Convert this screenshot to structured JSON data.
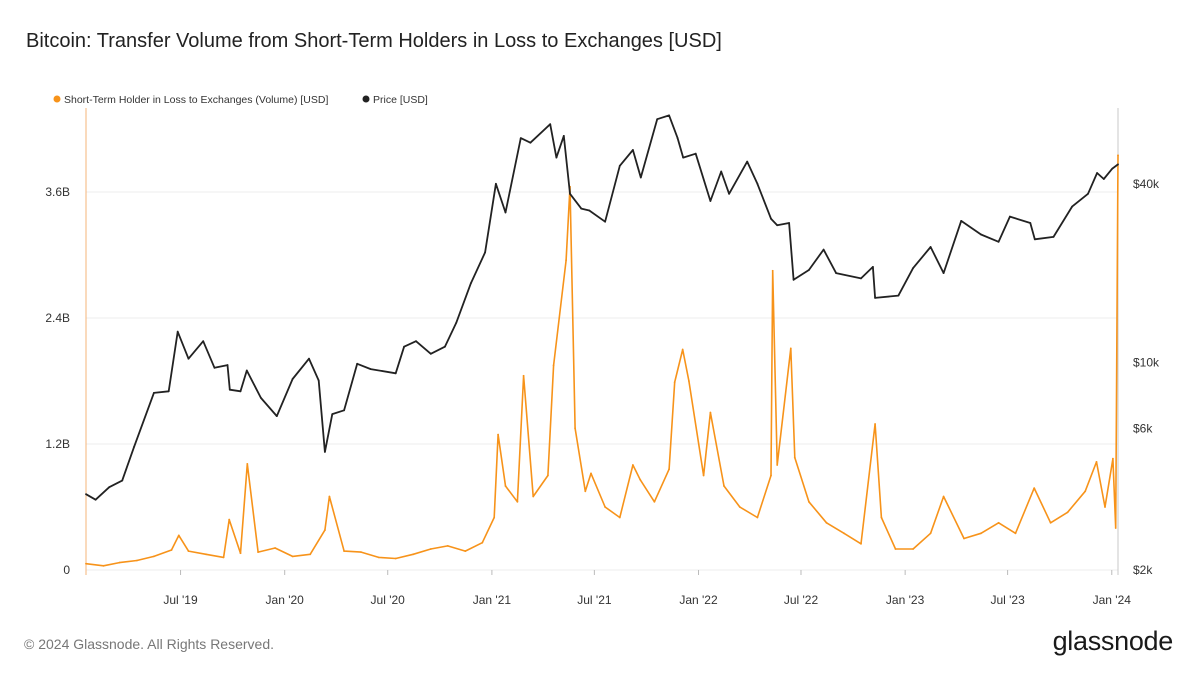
{
  "title": "Bitcoin: Transfer Volume from Short-Term Holders in Loss to Exchanges [USD]",
  "footer": "© 2024 Glassnode. All Rights Reserved.",
  "logo": "glassnode",
  "chart_data": {
    "type": "line",
    "x_range": [
      "2019-01-15",
      "2024-01-12"
    ],
    "x_ticks": [
      {
        "date": "2019-07-01",
        "label": "Jul '19"
      },
      {
        "date": "2020-01-01",
        "label": "Jan '20"
      },
      {
        "date": "2020-07-01",
        "label": "Jul '20"
      },
      {
        "date": "2021-01-01",
        "label": "Jan '21"
      },
      {
        "date": "2021-07-01",
        "label": "Jul '21"
      },
      {
        "date": "2022-01-01",
        "label": "Jan '22"
      },
      {
        "date": "2022-07-01",
        "label": "Jul '22"
      },
      {
        "date": "2023-01-01",
        "label": "Jan '23"
      },
      {
        "date": "2023-07-01",
        "label": "Jul '23"
      },
      {
        "date": "2024-01-01",
        "label": "Jan '24"
      }
    ],
    "y_left": {
      "scale": "linear",
      "range": [
        0,
        4400000000
      ],
      "ticks": [
        {
          "value": 0,
          "label": "0"
        },
        {
          "value": 1200000000,
          "label": "1.2B"
        },
        {
          "value": 2400000000,
          "label": "2.4B"
        },
        {
          "value": 3600000000,
          "label": "3.6B"
        }
      ]
    },
    "y_right": {
      "scale": "log",
      "range": [
        2000,
        72000
      ],
      "ticks": [
        {
          "value": 2000,
          "label": "$2k"
        },
        {
          "value": 6000,
          "label": "$6k"
        },
        {
          "value": 10000,
          "label": "$10k"
        },
        {
          "value": 40000,
          "label": "$40k"
        }
      ]
    },
    "grid": true,
    "legend_position": "top-left",
    "series": [
      {
        "name": "Short-Term Holder in Loss to Exchanges (Volume) [USD]",
        "axis": "left",
        "color": "#f7931a",
        "points": [
          [
            "2019-01-15",
            60000000
          ],
          [
            "2019-02-15",
            40000000
          ],
          [
            "2019-03-15",
            70000000
          ],
          [
            "2019-04-15",
            90000000
          ],
          [
            "2019-05-15",
            130000000
          ],
          [
            "2019-06-15",
            190000000
          ],
          [
            "2019-06-28",
            330000000
          ],
          [
            "2019-07-15",
            180000000
          ],
          [
            "2019-08-15",
            150000000
          ],
          [
            "2019-09-15",
            120000000
          ],
          [
            "2019-09-25",
            480000000
          ],
          [
            "2019-10-15",
            160000000
          ],
          [
            "2019-10-27",
            1010000000
          ],
          [
            "2019-11-15",
            170000000
          ],
          [
            "2019-12-15",
            210000000
          ],
          [
            "2020-01-15",
            130000000
          ],
          [
            "2020-02-15",
            150000000
          ],
          [
            "2020-03-12",
            380000000
          ],
          [
            "2020-03-20",
            700000000
          ],
          [
            "2020-04-15",
            180000000
          ],
          [
            "2020-05-15",
            170000000
          ],
          [
            "2020-06-15",
            120000000
          ],
          [
            "2020-07-15",
            110000000
          ],
          [
            "2020-08-15",
            150000000
          ],
          [
            "2020-09-15",
            200000000
          ],
          [
            "2020-10-15",
            230000000
          ],
          [
            "2020-11-15",
            180000000
          ],
          [
            "2020-12-15",
            260000000
          ],
          [
            "2021-01-05",
            500000000
          ],
          [
            "2021-01-12",
            1290000000
          ],
          [
            "2021-01-25",
            800000000
          ],
          [
            "2021-02-15",
            650000000
          ],
          [
            "2021-02-26",
            1850000000
          ],
          [
            "2021-03-15",
            700000000
          ],
          [
            "2021-04-10",
            900000000
          ],
          [
            "2021-04-20",
            1950000000
          ],
          [
            "2021-05-12",
            2950000000
          ],
          [
            "2021-05-19",
            3650000000
          ],
          [
            "2021-05-28",
            1350000000
          ],
          [
            "2021-06-15",
            750000000
          ],
          [
            "2021-06-25",
            920000000
          ],
          [
            "2021-07-20",
            600000000
          ],
          [
            "2021-08-15",
            500000000
          ],
          [
            "2021-09-07",
            1000000000
          ],
          [
            "2021-09-20",
            860000000
          ],
          [
            "2021-10-15",
            650000000
          ],
          [
            "2021-11-10",
            960000000
          ],
          [
            "2021-11-20",
            1790000000
          ],
          [
            "2021-12-04",
            2100000000
          ],
          [
            "2021-12-15",
            1800000000
          ],
          [
            "2022-01-10",
            900000000
          ],
          [
            "2022-01-22",
            1500000000
          ],
          [
            "2022-02-15",
            800000000
          ],
          [
            "2022-03-15",
            600000000
          ],
          [
            "2022-04-15",
            500000000
          ],
          [
            "2022-05-09",
            900000000
          ],
          [
            "2022-05-12",
            2850000000
          ],
          [
            "2022-05-20",
            1000000000
          ],
          [
            "2022-06-13",
            2110000000
          ],
          [
            "2022-06-20",
            1070000000
          ],
          [
            "2022-07-15",
            650000000
          ],
          [
            "2022-08-15",
            450000000
          ],
          [
            "2022-09-15",
            350000000
          ],
          [
            "2022-10-15",
            250000000
          ],
          [
            "2022-11-09",
            1390000000
          ],
          [
            "2022-11-20",
            500000000
          ],
          [
            "2022-12-15",
            200000000
          ],
          [
            "2023-01-15",
            200000000
          ],
          [
            "2023-02-15",
            350000000
          ],
          [
            "2023-03-10",
            700000000
          ],
          [
            "2023-04-15",
            300000000
          ],
          [
            "2023-05-15",
            350000000
          ],
          [
            "2023-06-15",
            450000000
          ],
          [
            "2023-07-15",
            350000000
          ],
          [
            "2023-08-17",
            780000000
          ],
          [
            "2023-09-15",
            450000000
          ],
          [
            "2023-10-15",
            550000000
          ],
          [
            "2023-11-15",
            750000000
          ],
          [
            "2023-12-05",
            1030000000
          ],
          [
            "2023-12-20",
            600000000
          ],
          [
            "2024-01-03",
            1060000000
          ],
          [
            "2024-01-08",
            400000000
          ],
          [
            "2024-01-12",
            3950000000
          ]
        ]
      },
      {
        "name": "Price [USD]",
        "axis": "right",
        "color": "#222222",
        "points": [
          [
            "2019-01-15",
            3600
          ],
          [
            "2019-02-01",
            3450
          ],
          [
            "2019-02-25",
            3800
          ],
          [
            "2019-03-20",
            4000
          ],
          [
            "2019-04-10",
            5200
          ],
          [
            "2019-05-15",
            7900
          ],
          [
            "2019-06-10",
            8000
          ],
          [
            "2019-06-26",
            12700
          ],
          [
            "2019-07-15",
            10300
          ],
          [
            "2019-08-10",
            11800
          ],
          [
            "2019-08-30",
            9600
          ],
          [
            "2019-09-22",
            9800
          ],
          [
            "2019-09-26",
            8100
          ],
          [
            "2019-10-15",
            8000
          ],
          [
            "2019-10-26",
            9400
          ],
          [
            "2019-11-20",
            7600
          ],
          [
            "2019-12-18",
            6600
          ],
          [
            "2020-01-15",
            8800
          ],
          [
            "2020-02-13",
            10300
          ],
          [
            "2020-03-01",
            8700
          ],
          [
            "2020-03-12",
            5000
          ],
          [
            "2020-03-25",
            6700
          ],
          [
            "2020-04-15",
            6900
          ],
          [
            "2020-05-08",
            9900
          ],
          [
            "2020-06-01",
            9500
          ],
          [
            "2020-07-15",
            9200
          ],
          [
            "2020-07-30",
            11300
          ],
          [
            "2020-08-20",
            11800
          ],
          [
            "2020-09-15",
            10700
          ],
          [
            "2020-10-10",
            11300
          ],
          [
            "2020-10-30",
            13600
          ],
          [
            "2020-11-25",
            18500
          ],
          [
            "2020-12-20",
            23500
          ],
          [
            "2021-01-08",
            40000
          ],
          [
            "2021-01-25",
            32000
          ],
          [
            "2021-02-21",
            57000
          ],
          [
            "2021-03-10",
            55000
          ],
          [
            "2021-04-14",
            63500
          ],
          [
            "2021-04-25",
            49000
          ],
          [
            "2021-05-08",
            58000
          ],
          [
            "2021-05-19",
            37000
          ],
          [
            "2021-06-08",
            33000
          ],
          [
            "2021-06-22",
            32500
          ],
          [
            "2021-07-20",
            29800
          ],
          [
            "2021-08-15",
            46000
          ],
          [
            "2021-09-07",
            52000
          ],
          [
            "2021-09-21",
            42000
          ],
          [
            "2021-10-20",
            66000
          ],
          [
            "2021-11-10",
            68000
          ],
          [
            "2021-11-25",
            57000
          ],
          [
            "2021-12-05",
            49000
          ],
          [
            "2021-12-27",
            50500
          ],
          [
            "2022-01-22",
            35000
          ],
          [
            "2022-02-10",
            44000
          ],
          [
            "2022-02-24",
            37000
          ],
          [
            "2022-03-28",
            47500
          ],
          [
            "2022-04-15",
            40000
          ],
          [
            "2022-05-09",
            30500
          ],
          [
            "2022-05-20",
            29000
          ],
          [
            "2022-06-10",
            29500
          ],
          [
            "2022-06-18",
            19000
          ],
          [
            "2022-07-15",
            20500
          ],
          [
            "2022-08-10",
            24000
          ],
          [
            "2022-09-01",
            20000
          ],
          [
            "2022-10-15",
            19200
          ],
          [
            "2022-11-05",
            21000
          ],
          [
            "2022-11-09",
            16500
          ],
          [
            "2022-12-20",
            16800
          ],
          [
            "2023-01-15",
            20800
          ],
          [
            "2023-02-15",
            24500
          ],
          [
            "2023-03-10",
            20000
          ],
          [
            "2023-04-10",
            30000
          ],
          [
            "2023-05-15",
            27000
          ],
          [
            "2023-06-15",
            25500
          ],
          [
            "2023-07-05",
            31000
          ],
          [
            "2023-08-10",
            29500
          ],
          [
            "2023-08-18",
            26000
          ],
          [
            "2023-09-20",
            26500
          ],
          [
            "2023-10-23",
            33500
          ],
          [
            "2023-11-20",
            37000
          ],
          [
            "2023-12-06",
            43500
          ],
          [
            "2023-12-18",
            41500
          ],
          [
            "2024-01-02",
            45000
          ],
          [
            "2024-01-12",
            46500
          ]
        ]
      }
    ]
  }
}
